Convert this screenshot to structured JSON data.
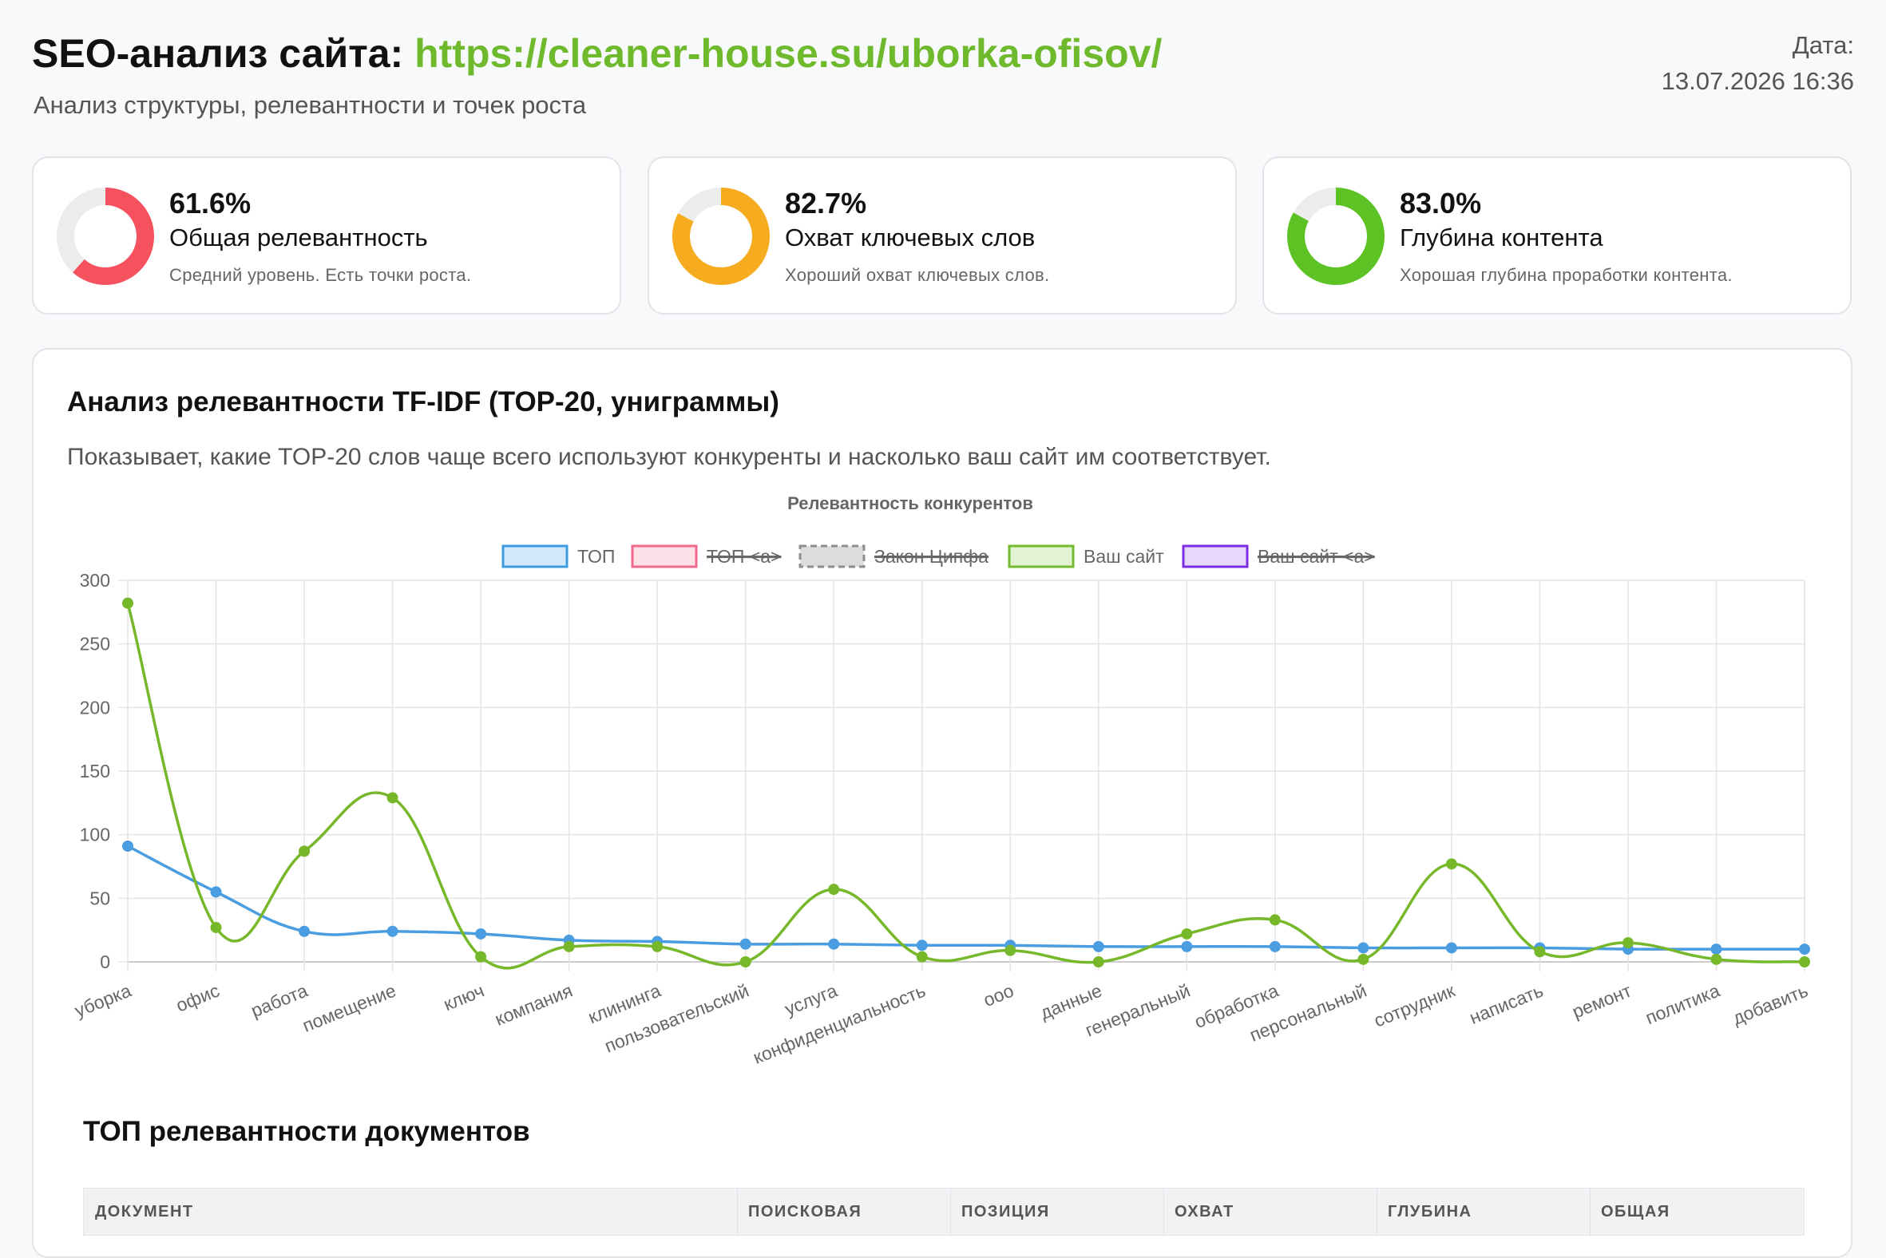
{
  "header": {
    "title_prefix": "SEO-анализ сайта: ",
    "url": "https://cleaner-house.su/uborka-ofisov/",
    "subtitle": "Анализ структуры, релевантности и точек роста",
    "date_label": "Дата:",
    "date_value": "13.07.2026 16:36"
  },
  "cards": [
    {
      "value": "61.6%",
      "percent": 61.6,
      "label": "Общая релевантность",
      "desc": "Средний уровень. Есть точки роста.",
      "color": "#f5515f"
    },
    {
      "value": "82.7%",
      "percent": 82.7,
      "label": "Охват ключевых слов",
      "desc": "Хороший охват ключевых слов.",
      "color": "#f7ac1f"
    },
    {
      "value": "83.0%",
      "percent": 83.0,
      "label": "Глубина контента",
      "desc": "Хорошая глубина проработки контента.",
      "color": "#5dc324"
    }
  ],
  "panel": {
    "title": "Анализ релевантности TF-IDF (TOP-20, униграммы)",
    "description": "Показывает, какие TOP-20 слов чаще всего используют конкуренты и насколько ваш сайт им соответствует."
  },
  "chart_data": {
    "type": "line",
    "title": "Релевантность конкурентов",
    "legend_position": "top",
    "grid": true,
    "ylim": [
      0,
      300
    ],
    "yticks": [
      0,
      50,
      100,
      150,
      200,
      250,
      300
    ],
    "categories": [
      "уборка",
      "офис",
      "работа",
      "помещение",
      "ключ",
      "компания",
      "клининга",
      "пользовательский",
      "услуга",
      "конфиденциальность",
      "ооо",
      "данные",
      "генеральный",
      "обработка",
      "персональный",
      "сотрудник",
      "написать",
      "ремонт",
      "политика",
      "добавить"
    ],
    "legend": [
      {
        "name": "ТОП",
        "stroke": "#3d9be0",
        "fill": "#d3e9fa",
        "dashed": false,
        "hidden": false
      },
      {
        "name": "ТОП <a>",
        "stroke": "#f26a8b",
        "fill": "#fde0e7",
        "dashed": false,
        "hidden": true
      },
      {
        "name": "Закон Ципфа",
        "stroke": "#8e8e8e",
        "fill": "#dcdcdc",
        "dashed": true,
        "hidden": true
      },
      {
        "name": "Ваш сайт",
        "stroke": "#73b92e",
        "fill": "#e2f2d5",
        "dashed": false,
        "hidden": false
      },
      {
        "name": "Ваш сайт <a>",
        "stroke": "#7c2ee5",
        "fill": "#e6d8fb",
        "dashed": false,
        "hidden": true
      }
    ],
    "series": [
      {
        "name": "ТОП",
        "color": "#4a9de0",
        "values": [
          91,
          55,
          24,
          24,
          22,
          17,
          16,
          14,
          14,
          13,
          13,
          12,
          12,
          12,
          11,
          11,
          11,
          10,
          10,
          10
        ]
      },
      {
        "name": "Ваш сайт",
        "color": "#76b82a",
        "values": [
          282,
          27,
          87,
          129,
          4,
          12,
          12,
          0,
          57,
          4,
          9,
          0,
          22,
          33,
          2,
          77,
          8,
          15,
          2,
          0
        ]
      }
    ]
  },
  "documents": {
    "title": "ТОП релевантности документов",
    "columns": [
      "ДОКУМЕНТ",
      "ПОИСКОВАЯ",
      "ПОЗИЦИЯ",
      "ОХВАТ",
      "ГЛУБИНА",
      "ОБЩАЯ"
    ]
  }
}
